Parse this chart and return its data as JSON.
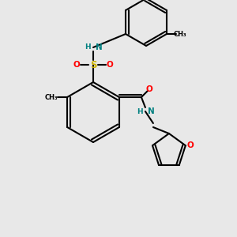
{
  "bg_color": "#e8e8e8",
  "bond_color": "#000000",
  "bond_lw": 1.5,
  "atom_colors": {
    "N": "#008080",
    "O": "#ff0000",
    "S": "#ccb200",
    "C": "#000000",
    "H": "#008080"
  },
  "font_size": 7.5
}
